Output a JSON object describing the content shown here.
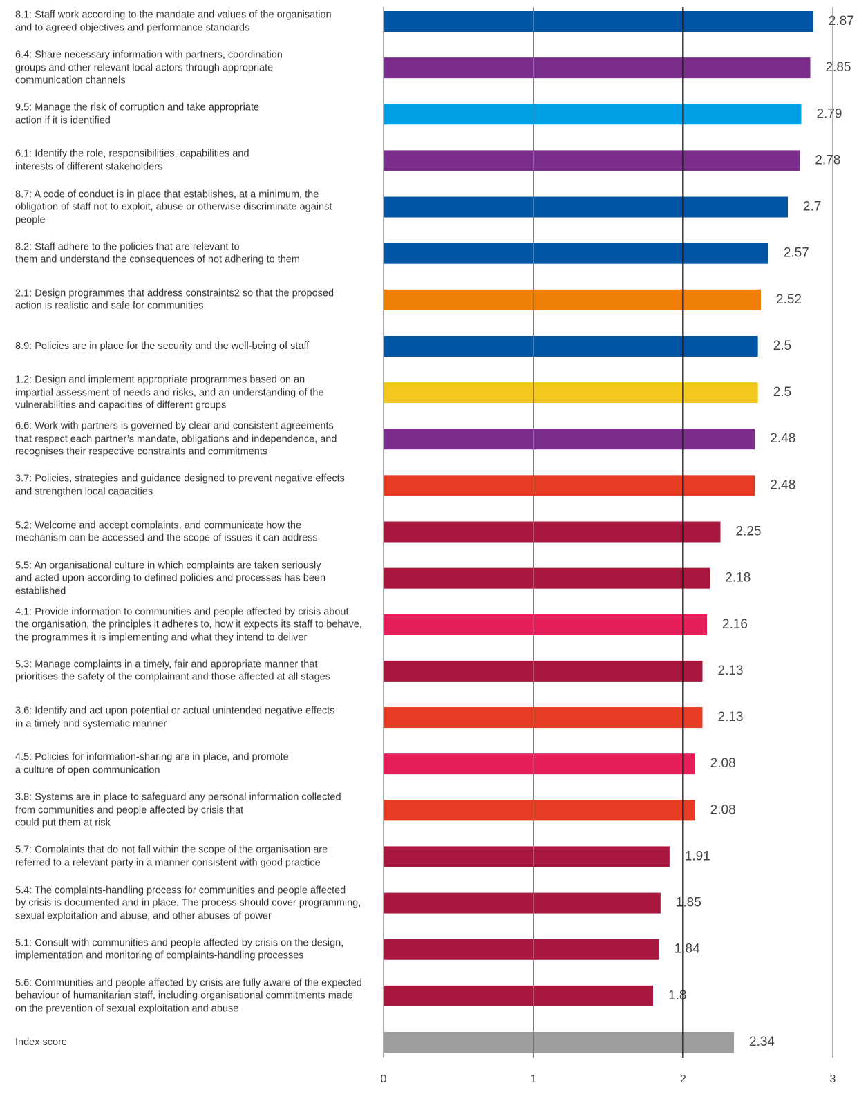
{
  "chart_data": {
    "type": "barh",
    "categories": [
      "8.1: Staff work according to the mandate and values of the organisation\nand to agreed objectives and performance standards",
      "6.4: Share necessary information with partners, coordination\ngroups and other relevant local actors through appropriate\ncommunication channels",
      "9.5: Manage the risk of corruption and take appropriate\naction if it is identified",
      "6.1: Identify the role, responsibilities, capabilities and\ninterests of different stakeholders",
      "8.7: A code of conduct is in place that establishes, at a minimum, the\nobligation of staff not to exploit, abuse or otherwise discriminate against\npeople",
      "8.2: Staff adhere to the policies that are relevant to\nthem and understand the consequences of not adhering to them",
      "2.1: Design programmes that address constraints2 so that the proposed\naction is realistic and safe for communities",
      "8.9: Policies are in place for the security and the well-being of staff",
      "1.2: Design and implement appropriate programmes based on an\nimpartial assessment of needs and risks, and an understanding of the\nvulnerabilities and capacities of different groups",
      "6.6: Work with partners is governed by clear and consistent agreements\nthat respect each partner’s mandate, obligations and independence, and\nrecognises their respective constraints and commitments",
      "3.7: Policies, strategies and guidance designed to prevent negative effects\nand strengthen local capacities",
      "5.2: Welcome and accept complaints, and communicate how the\nmechanism can be accessed and the scope of issues it can address",
      "5.5: An organisational culture in which complaints are taken seriously\nand acted upon according to defined policies and processes has been\nestablished",
      "4.1: Provide information to communities and people affected by crisis about\nthe organisation, the principles it adheres to, how it expects its staff to behave,\nthe programmes it is implementing and what they intend to deliver",
      "5.3: Manage complaints in a timely, fair and appropriate manner that\nprioritises the safety of the complainant and those affected at all stages",
      "3.6: Identify and act upon potential or actual unintended negative effects\nin a timely and systematic manner",
      "4.5: Policies for information-sharing are in place, and promote\na culture of open communication",
      "3.8: Systems are in place to safeguard any personal information collected\nfrom communities and people affected by crisis that\ncould put them at risk",
      "5.7: Complaints that do not fall within the scope of the organisation are\nreferred to a relevant party in a manner consistent with good practice",
      "5.4: The complaints-handling process for communities and people affected\nby crisis is documented and in place. The process should cover programming,\nsexual exploitation and abuse, and other abuses of power",
      "5.1: Consult with communities and people affected by crisis on the design,\nimplementation and monitoring of complaints-handling processes",
      "5.6: Communities and people affected by crisis are fully aware of the expected\nbehaviour of humanitarian staff, including organisational commitments made\non the prevention of sexual exploitation and abuse",
      "Index score"
    ],
    "values": [
      2.87,
      2.85,
      2.79,
      2.78,
      2.7,
      2.57,
      2.52,
      2.5,
      2.5,
      2.48,
      2.48,
      2.25,
      2.18,
      2.16,
      2.13,
      2.13,
      2.08,
      2.08,
      1.91,
      1.85,
      1.84,
      1.8,
      2.34
    ],
    "colors": [
      "#0055a4",
      "#7b2d8b",
      "#009fe3",
      "#7b2d8b",
      "#0055a4",
      "#0055a4",
      "#f0800a",
      "#0055a4",
      "#f2c81e",
      "#7b2d8b",
      "#e63c24",
      "#a8173e",
      "#a8173e",
      "#e61e5a",
      "#a8173e",
      "#e63c24",
      "#e61e5a",
      "#e63c24",
      "#a8173e",
      "#a8173e",
      "#a8173e",
      "#a8173e",
      "#9d9d9d"
    ],
    "xlim": [
      0,
      3
    ],
    "xticks": [
      0,
      1,
      2,
      3
    ],
    "grid": true,
    "reference_line": 2
  }
}
